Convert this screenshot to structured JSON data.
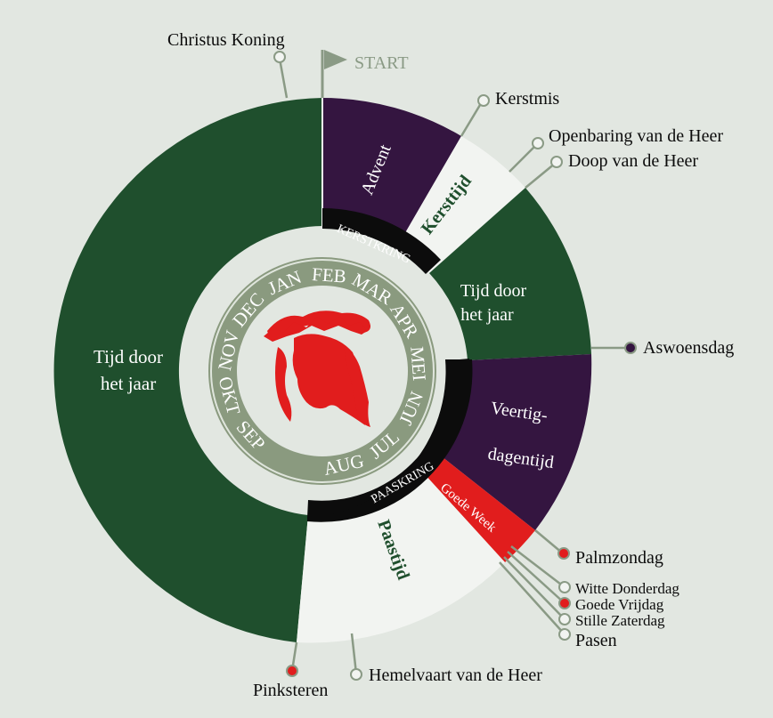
{
  "colors": {
    "background": "#e2e7e1",
    "green": "#1f4f2d",
    "purple": "#341540",
    "white": "#f2f4f1",
    "red": "#e11d1d",
    "black": "#0c0c0c",
    "month_ring": "#8a9a7f",
    "center": "#e2e7e1",
    "callout_line": "#8a9a85",
    "flag": "#8a9a85"
  },
  "start_label": "START",
  "seasons": {
    "advent": "Advent",
    "kersttijd": "Kersttijd",
    "tijd_door_het_jaar_small_line1": "Tijd door",
    "tijd_door_het_jaar_small_line2": "het jaar",
    "veertigdagentijd_line1": "Veertig-",
    "veertigdagentijd_line2": "dagentijd",
    "goede_week": "Goede Week",
    "paastijd": "Paastijd",
    "tijd_door_het_jaar_large_line1": "Tijd door",
    "tijd_door_het_jaar_large_line2": "het jaar"
  },
  "cycles": {
    "kerstkring": "KERSTKRING",
    "paaskring": "PAASKRING"
  },
  "months": [
    "SEP",
    "OKT",
    "NOV",
    "DEC",
    "JAN",
    "FEB",
    "MAR",
    "APR",
    "MEI",
    "JUN",
    "JUL",
    "AUG"
  ],
  "feasts": {
    "christus_koning": "Christus Koning",
    "kerstmis": "Kerstmis",
    "openbaring": "Openbaring van de Heer",
    "doop": "Doop van de Heer",
    "aswoensdag": "Aswoensdag",
    "palmzondag": "Palmzondag",
    "witte_donderdag": "Witte Donderdag",
    "goede_vrijdag": "Goede Vrijdag",
    "stille_zaterdag": "Stille Zaterdag",
    "pasen": "Pasen",
    "hemelvaart": "Hemelvaart van de Heer",
    "pinksteren": "Pinksteren"
  },
  "center_icon": "christ-head-crown-of-thorns-icon"
}
